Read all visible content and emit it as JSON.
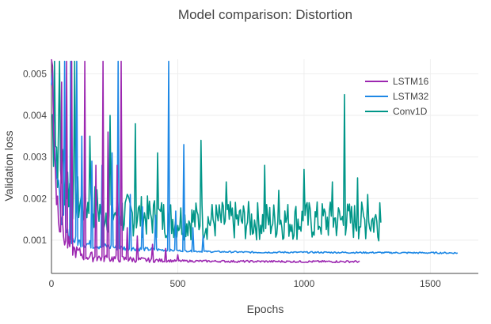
{
  "chart_data": {
    "type": "line",
    "title": "Model comparison: Distortion",
    "xlabel": "Epochs",
    "ylabel": "Validation loss",
    "xlim": [
      0,
      1690
    ],
    "ylim": [
      0.0002,
      0.00535
    ],
    "xticks": [
      0,
      500,
      1000,
      1500
    ],
    "xtick_labels": [
      "0",
      "500",
      "1000",
      "1500"
    ],
    "yticks": [
      0.001,
      0.002,
      0.003,
      0.004,
      0.005
    ],
    "ytick_labels": [
      "0.001",
      "0.002",
      "0.003",
      "0.004",
      "0.005"
    ],
    "grid": true,
    "legend_position": "top-right",
    "series": [
      {
        "name": "LSTM16",
        "color": "#9c27b0",
        "x": [
          0,
          20,
          40,
          60,
          80,
          100,
          130,
          160,
          200,
          250,
          300,
          400,
          500,
          600,
          700,
          800,
          1000,
          1220
        ],
        "y": [
          0.0052,
          0.0019,
          0.0011,
          0.00085,
          0.00072,
          0.00065,
          0.00058,
          0.00055,
          0.00053,
          0.00052,
          0.00051,
          0.000495,
          0.00049,
          0.000485,
          0.00048,
          0.000478,
          0.000475,
          0.000475
        ],
        "spikes": [
          [
            40,
            0.0048
          ],
          [
            60,
            0.0053
          ],
          [
            80,
            0.0053
          ],
          [
            130,
            0.0053
          ],
          [
            175,
            0.0028
          ],
          [
            205,
            0.0053
          ],
          [
            225,
            0.0036
          ],
          [
            260,
            0.0028
          ],
          [
            275,
            0.0053
          ],
          [
            300,
            0.0013
          ],
          [
            340,
            0.0011
          ],
          [
            400,
            0.0009
          ],
          [
            450,
            0.0008
          ],
          [
            500,
            0.00065
          ]
        ]
      },
      {
        "name": "LSTM32",
        "color": "#1e88e5",
        "x": [
          0,
          20,
          40,
          60,
          80,
          100,
          130,
          160,
          200,
          250,
          300,
          350,
          400,
          500,
          600,
          700,
          800,
          1000,
          1200,
          1400,
          1610
        ],
        "y": [
          0.0052,
          0.0024,
          0.0015,
          0.0011,
          0.00098,
          0.00092,
          0.00088,
          0.00085,
          0.00082,
          0.0008,
          0.00078,
          0.00077,
          0.00076,
          0.00074,
          0.00072,
          0.00071,
          0.0007,
          0.0007,
          0.000695,
          0.00069,
          0.000685
        ],
        "spikes": [
          [
            50,
            0.0053
          ],
          [
            75,
            0.0053
          ],
          [
            100,
            0.0053
          ],
          [
            120,
            0.0035
          ],
          [
            160,
            0.0029
          ],
          [
            200,
            0.0028
          ],
          [
            240,
            0.0031
          ],
          [
            265,
            0.0053
          ],
          [
            310,
            0.0021
          ],
          [
            360,
            0.0018
          ],
          [
            410,
            0.0016
          ],
          [
            462,
            0.0053
          ],
          [
            490,
            0.0017
          ],
          [
            522,
            0.0033
          ],
          [
            560,
            0.0013
          ],
          [
            600,
            0.0011
          ]
        ]
      },
      {
        "name": "Conv1D",
        "color": "#009688",
        "x": [
          0,
          20,
          40,
          60,
          80,
          100,
          150,
          200,
          250,
          300,
          400,
          500,
          600,
          700,
          800,
          900,
          1000,
          1100,
          1200,
          1305
        ],
        "y": [
          0.0035,
          0.0028,
          0.0024,
          0.0021,
          0.0019,
          0.0017,
          0.0016,
          0.0015,
          0.00145,
          0.0014,
          0.00135,
          0.0013,
          0.00128,
          0.00127,
          0.00127,
          0.00128,
          0.00128,
          0.00128,
          0.00127,
          0.00127
        ],
        "spikes": [
          [
            10,
            0.0053
          ],
          [
            30,
            0.0053
          ],
          [
            90,
            0.0053
          ],
          [
            150,
            0.0035
          ],
          [
            230,
            0.004
          ],
          [
            330,
            0.0038
          ],
          [
            420,
            0.0031
          ],
          [
            590,
            0.0034
          ],
          [
            690,
            0.0024
          ],
          [
            845,
            0.0028
          ],
          [
            900,
            0.0022
          ],
          [
            1000,
            0.0027
          ],
          [
            1110,
            0.0024
          ],
          [
            1160,
            0.0045
          ],
          [
            1210,
            0.0025
          ],
          [
            1250,
            0.0021
          ],
          [
            1300,
            0.0019
          ]
        ]
      }
    ]
  }
}
